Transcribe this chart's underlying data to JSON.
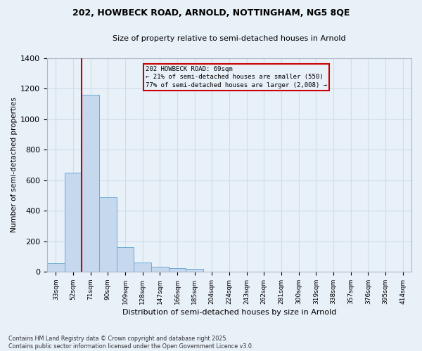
{
  "title1": "202, HOWBECK ROAD, ARNOLD, NOTTINGHAM, NG5 8QE",
  "title2": "Size of property relative to semi-detached houses in Arnold",
  "xlabel": "Distribution of semi-detached houses by size in Arnold",
  "ylabel": "Number of semi-detached properties",
  "categories": [
    "33sqm",
    "52sqm",
    "71sqm",
    "90sqm",
    "109sqm",
    "128sqm",
    "147sqm",
    "166sqm",
    "185sqm",
    "204sqm",
    "224sqm",
    "243sqm",
    "262sqm",
    "281sqm",
    "300sqm",
    "319sqm",
    "338sqm",
    "357sqm",
    "376sqm",
    "395sqm",
    "414sqm"
  ],
  "values": [
    55,
    650,
    1160,
    490,
    160,
    60,
    30,
    25,
    18,
    0,
    0,
    0,
    0,
    0,
    0,
    0,
    0,
    0,
    0,
    0,
    0
  ],
  "bar_color": "#c5d8ee",
  "bar_edge_color": "#6aaad4",
  "grid_color": "#d0dde8",
  "bg_color": "#e8f0f8",
  "vline_x_index": 2,
  "marker_label": "202 HOWBECK ROAD: 69sqm",
  "annotation_line1": "← 21% of semi-detached houses are smaller (550)",
  "annotation_line2": "77% of semi-detached houses are larger (2,008) →",
  "vline_color": "#cc0000",
  "box_color": "#cc0000",
  "ylim": [
    0,
    1400
  ],
  "yticks": [
    0,
    200,
    400,
    600,
    800,
    1000,
    1200,
    1400
  ],
  "footer1": "Contains HM Land Registry data © Crown copyright and database right 2025.",
  "footer2": "Contains public sector information licensed under the Open Government Licence v3.0."
}
